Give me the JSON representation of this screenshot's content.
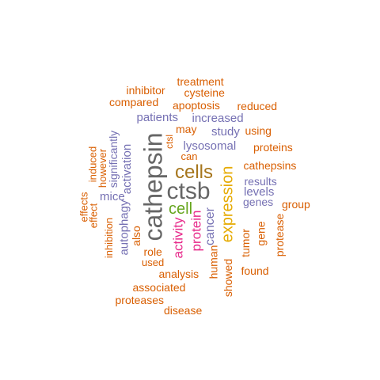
{
  "word_cloud": {
    "colors": {
      "orange": "#D95F02",
      "purple": "#7570B3",
      "magenta": "#E7298A",
      "green": "#66A61E",
      "gold": "#E6AB02",
      "brown": "#A6761D",
      "gray": "#666666"
    },
    "words": [
      {
        "text": "cathepsin",
        "color": "#666666",
        "rotated": true
      },
      {
        "text": "ctsb",
        "color": "#666666",
        "rotated": false
      },
      {
        "text": "cells",
        "color": "#A6761D",
        "rotated": false
      },
      {
        "text": "expression",
        "color": "#E6AB02",
        "rotated": true
      },
      {
        "text": "cell",
        "color": "#66A61E",
        "rotated": false
      },
      {
        "text": "activity",
        "color": "#E7298A",
        "rotated": true
      },
      {
        "text": "protein",
        "color": "#E7298A",
        "rotated": true
      },
      {
        "text": "cancer",
        "color": "#7570B3",
        "rotated": true
      },
      {
        "text": "lysosomal",
        "color": "#7570B3",
        "rotated": false
      },
      {
        "text": "increased",
        "color": "#7570B3",
        "rotated": false
      },
      {
        "text": "patients",
        "color": "#7570B3",
        "rotated": false
      },
      {
        "text": "study",
        "color": "#7570B3",
        "rotated": false
      },
      {
        "text": "levels",
        "color": "#7570B3",
        "rotated": false
      },
      {
        "text": "results",
        "color": "#7570B3",
        "rotated": false
      },
      {
        "text": "genes",
        "color": "#7570B3",
        "rotated": false
      },
      {
        "text": "activation",
        "color": "#7570B3",
        "rotated": true
      },
      {
        "text": "significantly",
        "color": "#7570B3",
        "rotated": true
      },
      {
        "text": "mice",
        "color": "#7570B3",
        "rotated": false
      },
      {
        "text": "autophagy",
        "color": "#7570B3",
        "rotated": true
      },
      {
        "text": "apoptosis",
        "color": "#D95F02",
        "rotated": false
      },
      {
        "text": "cysteine",
        "color": "#D95F02",
        "rotated": false
      },
      {
        "text": "treatment",
        "color": "#D95F02",
        "rotated": false
      },
      {
        "text": "inhibitor",
        "color": "#D95F02",
        "rotated": false
      },
      {
        "text": "compared",
        "color": "#D95F02",
        "rotated": false
      },
      {
        "text": "reduced",
        "color": "#D95F02",
        "rotated": false
      },
      {
        "text": "may",
        "color": "#D95F02",
        "rotated": false
      },
      {
        "text": "using",
        "color": "#D95F02",
        "rotated": false
      },
      {
        "text": "proteins",
        "color": "#D95F02",
        "rotated": false
      },
      {
        "text": "cathepsins",
        "color": "#D95F02",
        "rotated": false
      },
      {
        "text": "group",
        "color": "#D95F02",
        "rotated": false
      },
      {
        "text": "can",
        "color": "#D95F02",
        "rotated": false
      },
      {
        "text": "ctsl",
        "color": "#D95F02",
        "rotated": true
      },
      {
        "text": "induced",
        "color": "#D95F02",
        "rotated": true
      },
      {
        "text": "however",
        "color": "#D95F02",
        "rotated": true
      },
      {
        "text": "effects",
        "color": "#D95F02",
        "rotated": true
      },
      {
        "text": "effect",
        "color": "#D95F02",
        "rotated": true
      },
      {
        "text": "inhibition",
        "color": "#D95F02",
        "rotated": true
      },
      {
        "text": "also",
        "color": "#D95F02",
        "rotated": true
      },
      {
        "text": "role",
        "color": "#D95F02",
        "rotated": false
      },
      {
        "text": "used",
        "color": "#D95F02",
        "rotated": false
      },
      {
        "text": "analysis",
        "color": "#D95F02",
        "rotated": false
      },
      {
        "text": "associated",
        "color": "#D95F02",
        "rotated": false
      },
      {
        "text": "proteases",
        "color": "#D95F02",
        "rotated": false
      },
      {
        "text": "disease",
        "color": "#D95F02",
        "rotated": false
      },
      {
        "text": "human",
        "color": "#D95F02",
        "rotated": true
      },
      {
        "text": "showed",
        "color": "#D95F02",
        "rotated": true
      },
      {
        "text": "tumor",
        "color": "#D95F02",
        "rotated": true
      },
      {
        "text": "gene",
        "color": "#D95F02",
        "rotated": true
      },
      {
        "text": "found",
        "color": "#D95F02",
        "rotated": false
      },
      {
        "text": "protease",
        "color": "#D95F02",
        "rotated": true
      }
    ]
  }
}
